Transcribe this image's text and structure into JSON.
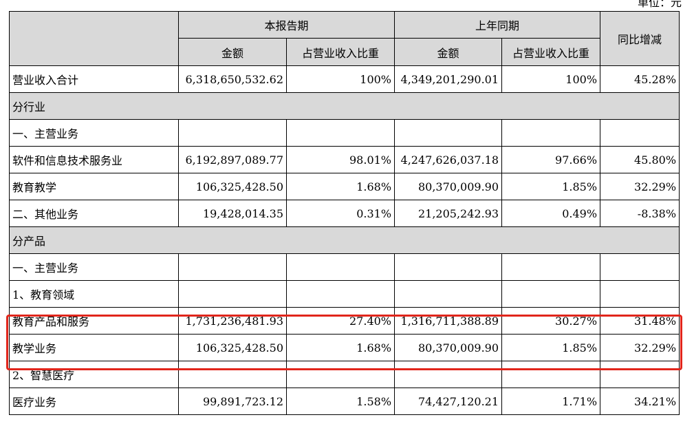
{
  "unit_note": "单位：元",
  "header": {
    "current_period": "本报告期",
    "prior_period": "上年同期",
    "yoy_change": "同比增减",
    "amount": "金额",
    "revenue_share": "占营业收入比重"
  },
  "rows": [
    {
      "label": "营业收入合计",
      "cur_amount": "6,318,650,532.62",
      "cur_share": "100%",
      "prev_amount": "4,349,201,290.01",
      "prev_share": "100%",
      "yoy": "45.28%"
    },
    {
      "section": true,
      "label": "分行业"
    },
    {
      "label": "一、主营业务",
      "cur_amount": "",
      "cur_share": "",
      "prev_amount": "",
      "prev_share": "",
      "yoy": ""
    },
    {
      "label": "软件和信息技术服务业",
      "cur_amount": "6,192,897,089.77",
      "cur_share": "98.01%",
      "prev_amount": "4,247,626,037.18",
      "prev_share": "97.66%",
      "yoy": "45.80%"
    },
    {
      "label": "教育教学",
      "cur_amount": "106,325,428.50",
      "cur_share": "1.68%",
      "prev_amount": "80,370,009.90",
      "prev_share": "1.85%",
      "yoy": "32.29%"
    },
    {
      "label": "二、其他业务",
      "cur_amount": "19,428,014.35",
      "cur_share": "0.31%",
      "prev_amount": "21,205,242.93",
      "prev_share": "0.49%",
      "yoy": "-8.38%"
    },
    {
      "section": true,
      "label": "分产品"
    },
    {
      "label": "一、主营业务",
      "cur_amount": "",
      "cur_share": "",
      "prev_amount": "",
      "prev_share": "",
      "yoy": ""
    },
    {
      "label": "1、教育领域",
      "cur_amount": "",
      "cur_share": "",
      "prev_amount": "",
      "prev_share": "",
      "yoy": ""
    },
    {
      "label": "教育产品和服务",
      "cur_amount": "1,731,236,481.93",
      "cur_share": "27.40%",
      "prev_amount": "1,316,711,388.89",
      "prev_share": "30.27%",
      "yoy": "31.48%"
    },
    {
      "label": "教学业务",
      "cur_amount": "106,325,428.50",
      "cur_share": "1.68%",
      "prev_amount": "80,370,009.90",
      "prev_share": "1.85%",
      "yoy": "32.29%"
    },
    {
      "label": "2、智慧医疗",
      "cur_amount": "",
      "cur_share": "",
      "prev_amount": "",
      "prev_share": "",
      "yoy": ""
    },
    {
      "label": "医疗业务",
      "cur_amount": "99,891,723.12",
      "cur_share": "1.58%",
      "prev_amount": "74,427,120.21",
      "prev_share": "1.71%",
      "yoy": "34.21%"
    }
  ],
  "highlight": {
    "color": "#e1251b"
  },
  "colors": {
    "header_bg": "#d9d9d9",
    "section_bg": "#d9d9d9"
  }
}
